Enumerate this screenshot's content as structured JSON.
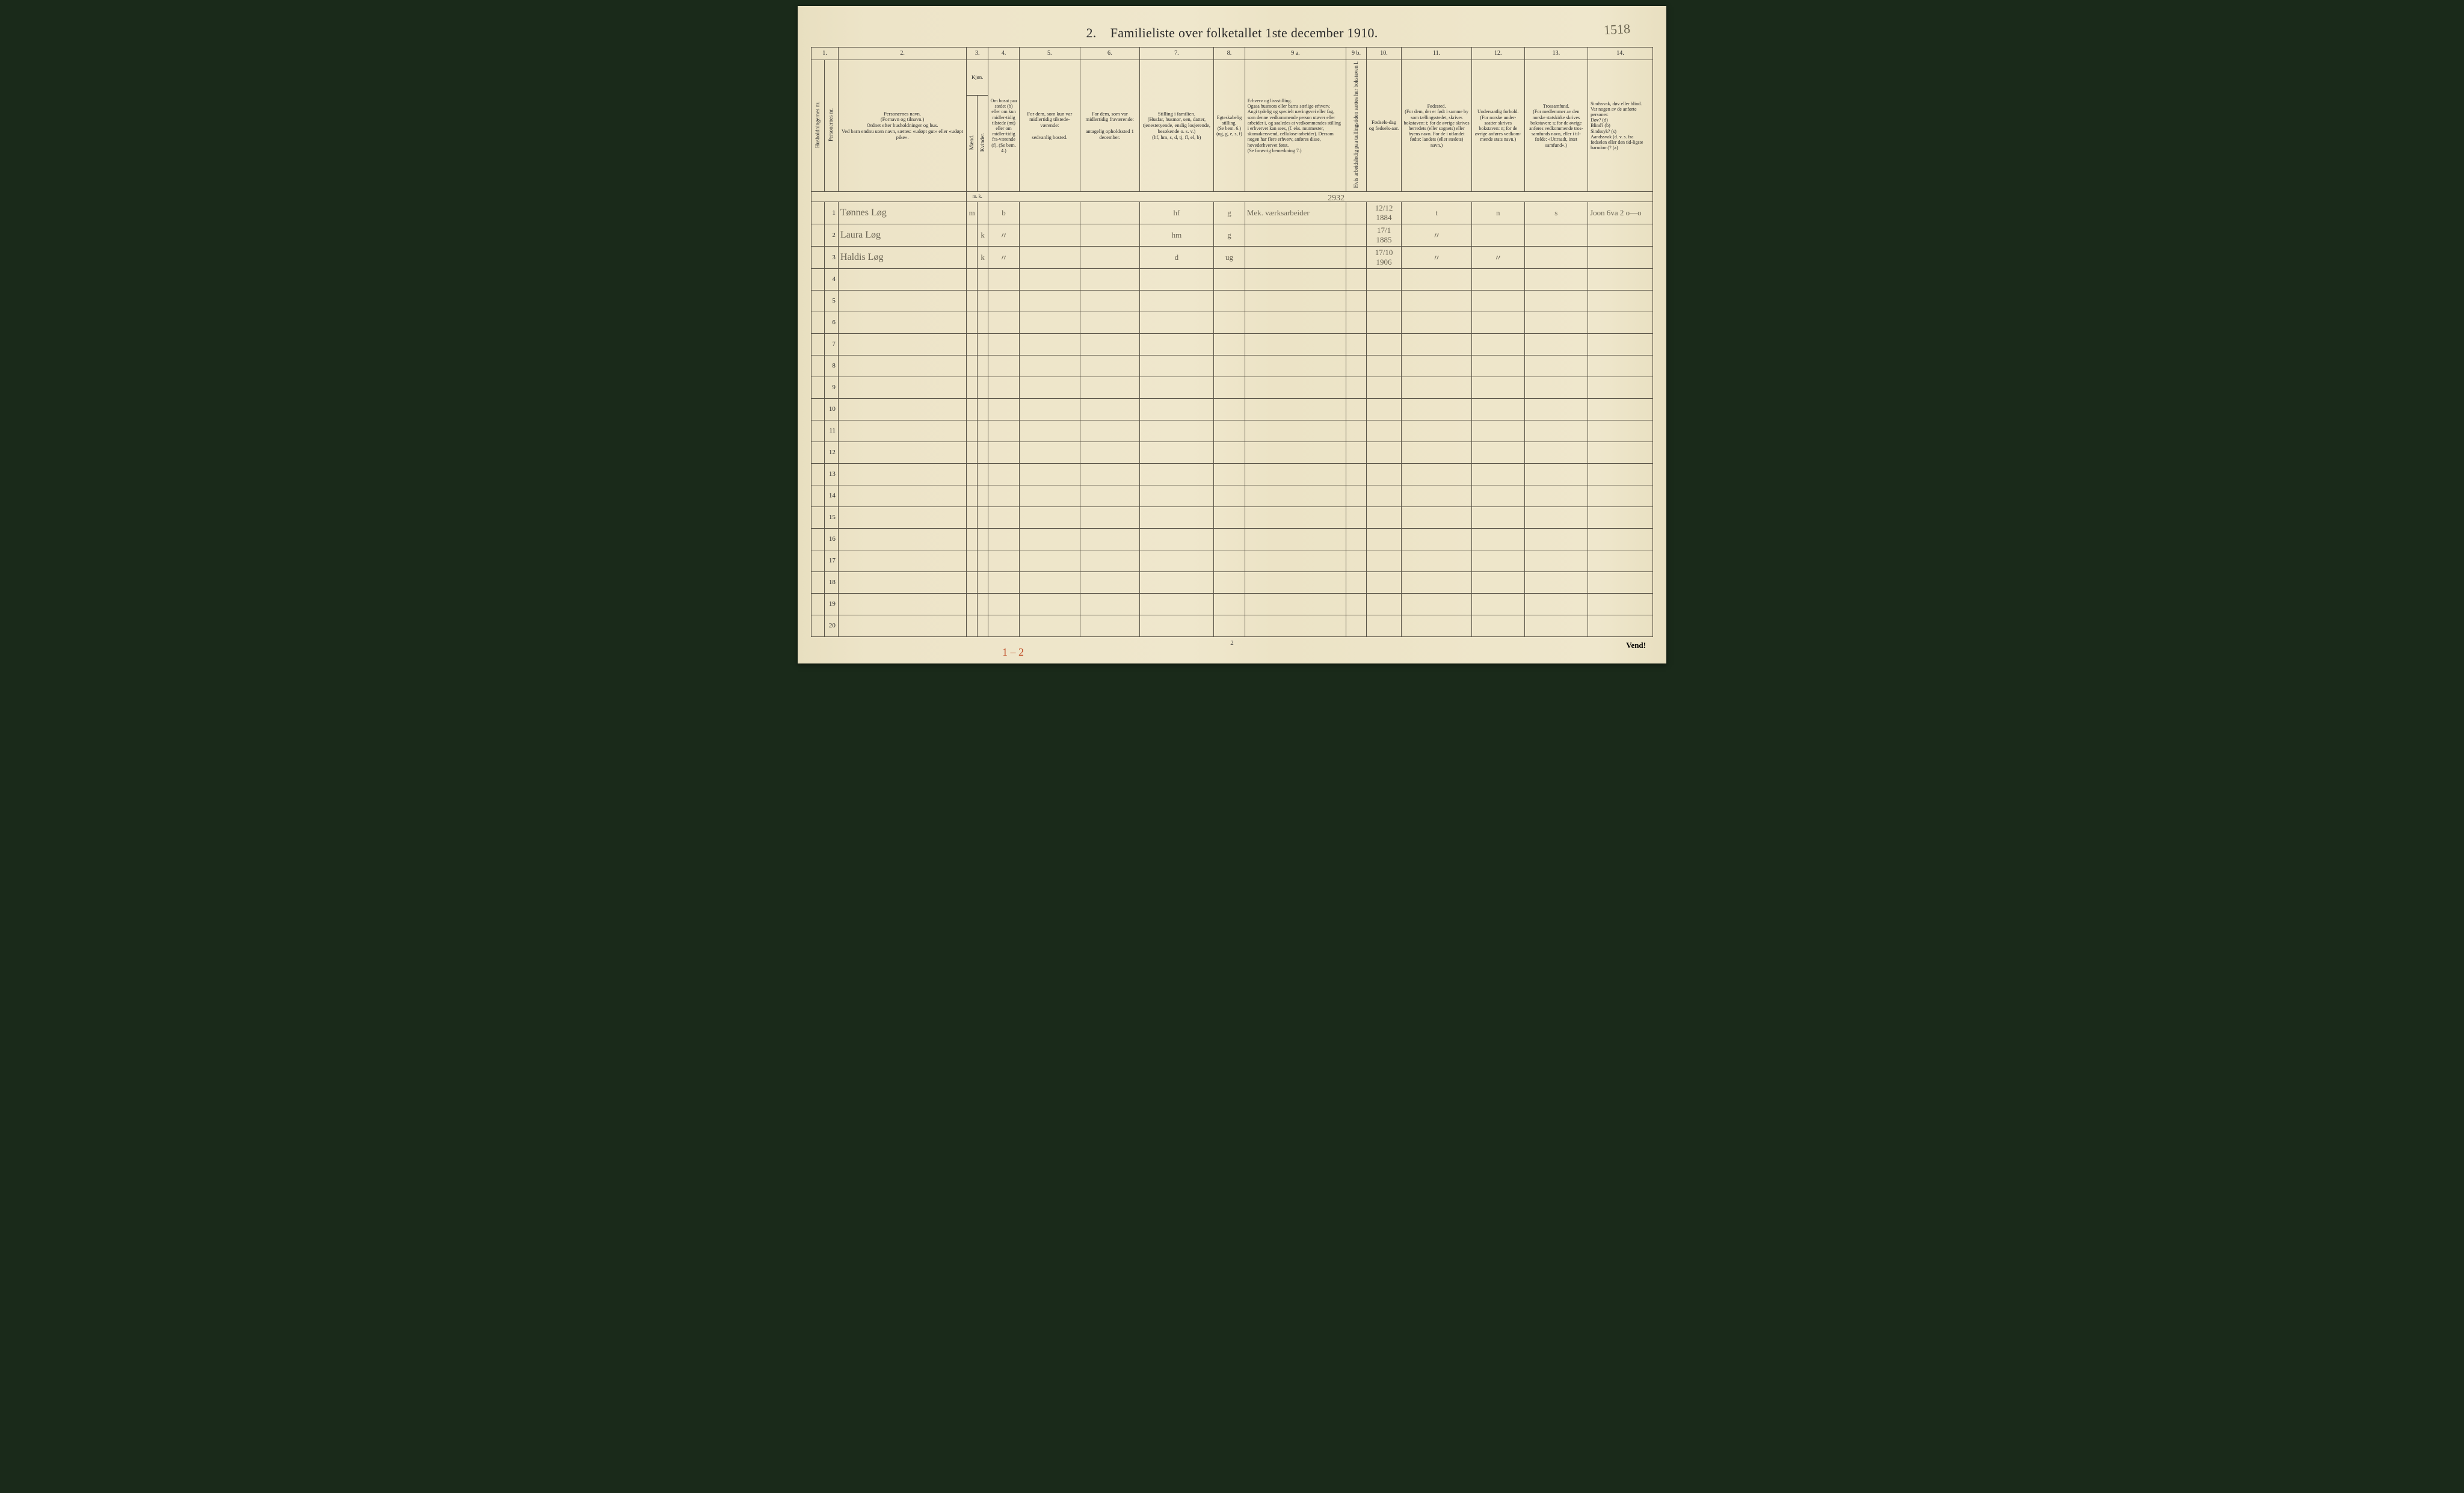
{
  "page": {
    "title_prefix": "2.",
    "title": "Familieliste over folketallet 1ste december 1910.",
    "top_handnote": "1518",
    "footer_page_number": "2",
    "vend": "Vend!",
    "bottom_red_note": "1 – 2"
  },
  "column_numbers": [
    "1.",
    "",
    "2.",
    "3.",
    "",
    "4.",
    "5.",
    "6.",
    "7.",
    "8.",
    "9 a.",
    "9 b.",
    "10.",
    "11.",
    "12.",
    "13.",
    "14."
  ],
  "headers": {
    "c1": "Husholdningernes nr.",
    "c1b": "Personernes nr.",
    "c2": "Personernes navn.\n(Fornavn og tilnavn.)\nOrdnet efter husholdninger og hus.\nVed barn endnu uten navn, sættes: «udøpt gut» eller «udøpt pike».",
    "c3": "Kjøn.",
    "c3m": "Mænd.",
    "c3k": "Kvinder.",
    "c3mk": "m.  k.",
    "c4": "Om bosat paa stedet (b) eller om kun midler-tidig tilstede (mt) eller om midler-tidig fra-værende (f). (Se bem. 4.)",
    "c5": "For dem, som kun var midlertidig tilstede-værende:\n\nsedvanlig bosted.",
    "c6": "For dem, som var midlertidig fraværende:\n\nantagelig opholdssted 1 december.",
    "c7": "Stilling i familien.\n(Husfar, husmor, søn, datter, tjenestetyende, enslig losjerende, besøkende o. s. v.)\n(hf, hm, s, d, tj, fl, el, b)",
    "c8": "Egteskabelig stilling.\n(Se bem. 6.)\n(ug, g, e, s, f)",
    "c9a": "Erhverv og livsstilling.\nOgsaa husmors eller barns særlige erhverv.\nAngi tydelig og specielt næringsvei eller fag, som denne vedkommende person utøver eller arbeider i, og saaledes at vedkommendes stilling i erhvervet kan sees, (f. eks. murmester, skomakersvend, cellulose-arbeider). Dersom nogen har flere erhverv, anføres disse, hovederhvervet først.\n(Se forøvrig bemerkning 7.)",
    "c9b": "Hvis arbeidsledig paa tællingstiden sættes her bokstaven l.",
    "c10": "Fødsels-dag og fødsels-aar.",
    "c11": "Fødested.\n(For dem, der er født i samme by som tællingsstedet, skrives bokstaven: t; for de øvrige skrives herredets (eller sognets) eller byens navn. For de i utlandet fødte: landets (eller stedets) navn.)",
    "c12": "Undersaatlig forhold.\n(For norske under-saatter skrives bokstaven: n; for de øvrige anføres vedkom-mende stats navn.)",
    "c13": "Trossamfund.\n(For medlemmer av den norske statskirke skrives bokstaven: s; for de øvrige anføres vedkommende tros-samfunds navn, eller i til-fælde: «Uttraadt, intet samfund».)",
    "c14": "Sindssvak, døv eller blind.\nVar nogen av de anførte personer:\nDøv?          (d)\nBlind?        (b)\nSindssyk?     (s)\nAandssvak (d. v. s. fra fødselen eller den tid-ligste barndom)?  (a)"
  },
  "row_labels": [
    "1",
    "2",
    "3",
    "4",
    "5",
    "6",
    "7",
    "8",
    "9",
    "10",
    "11",
    "12",
    "13",
    "14",
    "15",
    "16",
    "17",
    "18",
    "19",
    "20"
  ],
  "rows": [
    {
      "name": "Tønnes Løg",
      "sex_m": "m",
      "sex_k": "",
      "bosat": "b",
      "col5": "",
      "col6": "",
      "fam": "hf",
      "egte": "g",
      "erhverv": "Mek. værksarbeider",
      "ledig": "",
      "fodsel": "12/12 1884",
      "fodested": "t",
      "undersaat": "n",
      "tros": "s",
      "c14": "Joon 6va 2   o—o",
      "floating": "2932"
    },
    {
      "name": "Laura Løg",
      "sex_m": "",
      "sex_k": "k",
      "bosat": "〃",
      "col5": "",
      "col6": "",
      "fam": "hm",
      "egte": "g",
      "erhverv": "",
      "ledig": "",
      "fodsel": "17/1 1885",
      "fodested": "〃",
      "undersaat": "",
      "tros": "",
      "c14": "",
      "floating": ""
    },
    {
      "name": "Haldis Løg",
      "sex_m": "",
      "sex_k": "k",
      "bosat": "〃",
      "col5": "",
      "col6": "",
      "fam": "d",
      "egte": "ug",
      "erhverv": "",
      "ledig": "",
      "fodsel": "17/10 1906",
      "fodested": "〃",
      "undersaat": "〃",
      "tros": "",
      "c14": "",
      "floating": ""
    }
  ]
}
